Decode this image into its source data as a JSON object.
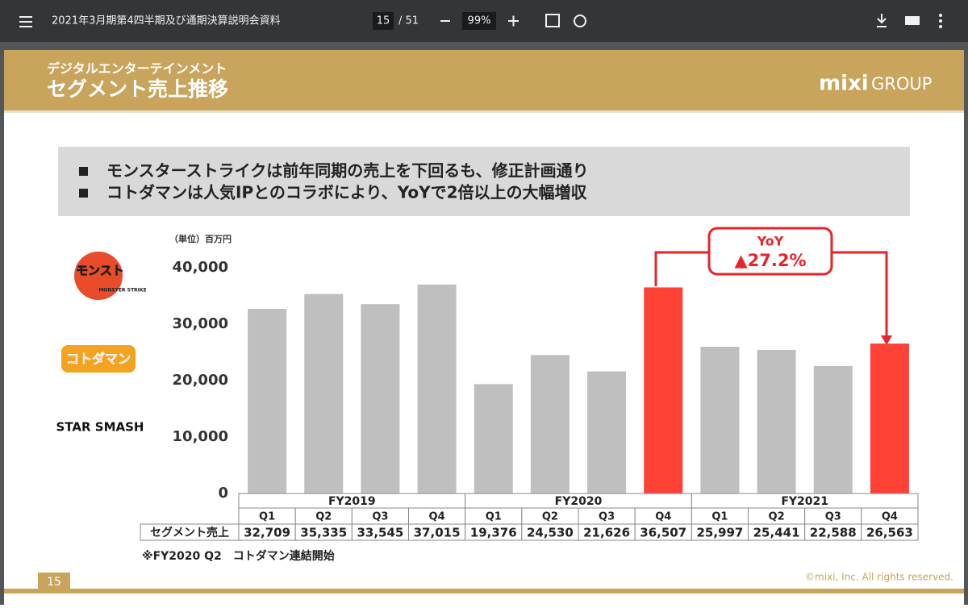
{
  "toolbar": {
    "title": "2021年3月期第4四半期及び通期決算説明会資料",
    "page": "15",
    "total_pages": "/ 51",
    "zoom": "99%"
  },
  "slide": {
    "subtitle": "デジタルエンターテインメント",
    "title": "セグメント売上推移",
    "brand": "mixi",
    "brand_group": "GROUP",
    "bullets": [
      "モンスターストライクは前年同期の売上を下回るも、修正計画通り",
      "コトダマンは人気IPとのコラボにより、YoYで2倍以上の大幅増収"
    ],
    "logos": [
      "モンスト",
      "MONSTER STRIKE",
      "コトダマン",
      "STAR SMASH"
    ],
    "unit": "（単位）百万円",
    "footnote": "※FY2020 Q2　コトダマン連結開始",
    "page_number": "15",
    "copyright": "©mixi, Inc. All rights reserved.",
    "annotation": {
      "label": "YoY",
      "value_label": "▲27.2%"
    }
  },
  "chart_data": {
    "type": "bar",
    "row_label": "セグメント売上",
    "groups": [
      "FY2019",
      "FY2020",
      "FY2021"
    ],
    "categories": [
      "Q1",
      "Q2",
      "Q3",
      "Q4",
      "Q1",
      "Q2",
      "Q3",
      "Q4",
      "Q1",
      "Q2",
      "Q3",
      "Q4"
    ],
    "values": [
      32709,
      35335,
      33545,
      37015,
      19376,
      24530,
      21626,
      36507,
      25997,
      25441,
      22588,
      26563
    ],
    "value_labels": [
      "32,709",
      "35,335",
      "33,545",
      "37,015",
      "19,376",
      "24,530",
      "21,626",
      "36,507",
      "25,997",
      "25,441",
      "22,588",
      "26,563"
    ],
    "colors": [
      "#bfbfbf",
      "#bfbfbf",
      "#bfbfbf",
      "#bfbfbf",
      "#bfbfbf",
      "#bfbfbf",
      "#bfbfbf",
      "#ff4136",
      "#bfbfbf",
      "#bfbfbf",
      "#bfbfbf",
      "#ff4136"
    ],
    "ylim": [
      0,
      40000
    ],
    "yticks": [
      0,
      {
        "value": 10000,
        "label": "10,000"
      },
      {
        "value": 20000,
        "label": "20,000"
      },
      {
        "value": 30000,
        "label": "30,000"
      },
      {
        "value": 40000,
        "label": "40,000"
      }
    ]
  }
}
